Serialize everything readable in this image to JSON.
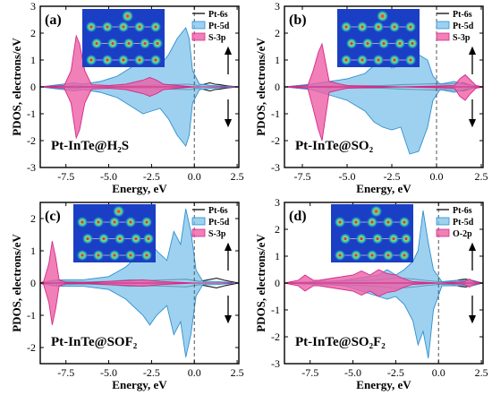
{
  "figure": {
    "background": "#ffffff"
  },
  "colors": {
    "pt6s": "#1a1a1a",
    "pt5d": "#7cc2ea",
    "pt5d_edge": "#2f8fd0",
    "s3p": "#ee5fa6",
    "s3p_edge": "#d42a86"
  },
  "chart_data": [
    {
      "type": "area",
      "panel_label": "(a)",
      "system": "Pt-InTe@H₂S",
      "xlabel": "Energy, eV",
      "ylabel": "PDOS, electrons/eV",
      "xlim": [
        -9,
        2.6
      ],
      "ylim": [
        -3,
        3
      ],
      "xticks": [
        -7.5,
        -5.0,
        -2.5,
        0.0,
        2.5
      ],
      "xticklabels": [
        "-7.5",
        "-5.0",
        "-2.5",
        "0.0",
        "2.5"
      ],
      "yticks": [
        -3,
        -2,
        -1,
        0,
        1,
        2,
        3
      ],
      "yticklabels": [
        "-3",
        "-2",
        "-1",
        "0",
        "1",
        "2",
        "3"
      ],
      "fermi_level": 0,
      "spin_arrows": true,
      "legend_position": "top-right",
      "inset": "charge-density map",
      "series": [
        {
          "name": "Pt-6s",
          "style": "line",
          "x": [
            -9,
            -7.5,
            -7.0,
            -6.5,
            -5.0,
            -3.0,
            -1.5,
            -0.3,
            0.2,
            0.6,
            0.9,
            1.2,
            1.5,
            2.0,
            2.6
          ],
          "up": [
            0,
            0.02,
            0.06,
            0.02,
            0.02,
            0.05,
            0.08,
            0.1,
            0.05,
            0.1,
            0.15,
            0.1,
            0.08,
            0.03,
            0
          ],
          "down": [
            0,
            -0.02,
            -0.06,
            -0.02,
            -0.02,
            -0.05,
            -0.08,
            -0.1,
            -0.05,
            -0.1,
            -0.15,
            -0.1,
            -0.08,
            -0.03,
            0
          ]
        },
        {
          "name": "Pt-5d",
          "style": "fill",
          "x": [
            -9,
            -7.0,
            -6.5,
            -5.5,
            -4.5,
            -3.5,
            -3.0,
            -2.5,
            -2.0,
            -1.5,
            -1.0,
            -0.5,
            -0.3,
            -0.1,
            0.3,
            1.0,
            2.6
          ],
          "up": [
            0,
            0.15,
            0.1,
            0.2,
            0.4,
            0.8,
            1.0,
            0.9,
            0.8,
            1.2,
            1.8,
            2.2,
            1.8,
            0.6,
            0.1,
            0.05,
            0
          ],
          "down": [
            0,
            -0.15,
            -0.1,
            -0.2,
            -0.4,
            -0.8,
            -1.0,
            -0.9,
            -0.8,
            -1.2,
            -1.8,
            -2.2,
            -1.8,
            -0.6,
            -0.1,
            -0.05,
            0
          ]
        },
        {
          "name": "S-3p",
          "style": "fill",
          "x": [
            -9,
            -7.6,
            -7.2,
            -6.9,
            -6.7,
            -6.4,
            -6.0,
            -5.0,
            -4.0,
            -3.0,
            -2.6,
            -2.2,
            -1.8,
            -1.0,
            0,
            2.6
          ],
          "up": [
            0,
            0.05,
            0.6,
            1.9,
            1.6,
            0.6,
            0.08,
            0.05,
            0.1,
            0.25,
            0.35,
            0.25,
            0.1,
            0.05,
            0,
            0
          ],
          "down": [
            0,
            -0.05,
            -0.6,
            -1.9,
            -1.6,
            -0.6,
            -0.08,
            -0.05,
            -0.1,
            -0.25,
            -0.35,
            -0.25,
            -0.1,
            -0.05,
            0,
            0
          ]
        }
      ]
    },
    {
      "type": "area",
      "panel_label": "(b)",
      "system": "Pt-InTe@SO₂",
      "xlabel": "Energy, eV",
      "ylabel": "PDOS, electrons/eV",
      "xlim": [
        -8.5,
        2.6
      ],
      "ylim": [
        -3,
        3
      ],
      "xticks": [
        -7.5,
        -5.0,
        -2.5,
        0.0,
        2.5
      ],
      "xticklabels": [
        "-7.5",
        "-5.0",
        "-2.5",
        "0.0",
        "2.5"
      ],
      "yticks": [
        -3,
        -2,
        -1,
        0,
        1,
        2,
        3
      ],
      "yticklabels": [
        "-3",
        "-2",
        "-1",
        "0",
        "1",
        "2",
        "3"
      ],
      "fermi_level": 0,
      "spin_arrows": true,
      "legend_position": "top-right",
      "inset": "charge-density map",
      "series": [
        {
          "name": "Pt-6s",
          "style": "line",
          "x": [
            -8.5,
            -6.5,
            -4.5,
            -3.0,
            -2.0,
            -1.0,
            -0.2,
            0.5,
            1.0,
            1.5,
            2.0,
            2.6
          ],
          "up": [
            0,
            0.02,
            0.03,
            0.05,
            0.08,
            0.1,
            0.12,
            0.1,
            0.12,
            0.15,
            0.05,
            0
          ],
          "down": [
            0,
            -0.02,
            -0.03,
            -0.05,
            -0.08,
            -0.1,
            -0.12,
            -0.1,
            -0.12,
            -0.15,
            -0.05,
            0
          ]
        },
        {
          "name": "Pt-5d",
          "style": "fill",
          "x": [
            -8.5,
            -7.0,
            -6.0,
            -5.0,
            -4.0,
            -3.5,
            -3.0,
            -2.5,
            -2.0,
            -1.5,
            -1.0,
            -0.5,
            -0.2,
            0.2,
            1.0,
            1.5,
            2.6
          ],
          "up": [
            0,
            0.1,
            0.2,
            0.3,
            0.5,
            0.8,
            1.0,
            0.7,
            0.8,
            1.5,
            1.2,
            1.0,
            0.4,
            0.1,
            0.2,
            0.1,
            0
          ],
          "down": [
            0,
            -0.1,
            -0.3,
            -0.5,
            -0.9,
            -1.3,
            -1.5,
            -1.6,
            -1.5,
            -2.5,
            -2.4,
            -1.5,
            -0.5,
            -0.1,
            -0.2,
            -0.1,
            0
          ]
        },
        {
          "name": "S-3p",
          "style": "fill",
          "x": [
            -8.5,
            -7.2,
            -6.9,
            -6.6,
            -6.4,
            -6.2,
            -6.0,
            -5.0,
            -2.0,
            1.0,
            1.3,
            1.6,
            1.9,
            2.2,
            2.6
          ],
          "up": [
            0,
            0.05,
            0.6,
            1.3,
            1.6,
            0.9,
            0.2,
            0.05,
            0,
            0.05,
            0.3,
            0.45,
            0.25,
            0.05,
            0
          ],
          "down": [
            0,
            -0.05,
            -0.8,
            -1.6,
            -2.0,
            -1.1,
            -0.2,
            -0.05,
            0,
            -0.05,
            -0.35,
            -0.5,
            -0.25,
            -0.05,
            0
          ]
        }
      ]
    },
    {
      "type": "area",
      "panel_label": "(c)",
      "system": "Pt-InTe@SOF₂",
      "xlabel": "Energy, eV",
      "ylabel": "PDOS, electrons/eV",
      "xlim": [
        -9,
        2.6
      ],
      "ylim": [
        -2.5,
        2.5
      ],
      "xticks": [
        -7.5,
        -5.0,
        -2.5,
        0.0,
        2.5
      ],
      "xticklabels": [
        "-7.5",
        "-5.0",
        "-2.5",
        "0.0",
        "2.5"
      ],
      "yticks": [
        -2,
        -1,
        0,
        1,
        2
      ],
      "yticklabels": [
        "-2",
        "-1",
        "0",
        "1",
        "2"
      ],
      "fermi_level": 0,
      "spin_arrows": true,
      "legend_position": "top-right",
      "inset": "charge-density map",
      "series": [
        {
          "name": "Pt-6s",
          "style": "line",
          "x": [
            -9,
            -8.5,
            -8.2,
            -7.8,
            -6.5,
            -5.0,
            -3.8,
            -2.5,
            -1.5,
            -0.5,
            0.3,
            0.8,
            1.3,
            1.8,
            2.6
          ],
          "up": [
            0,
            0.05,
            0.08,
            0.05,
            0.03,
            0.05,
            0.1,
            0.08,
            0.1,
            0.12,
            0.05,
            0.1,
            0.15,
            0.08,
            0
          ],
          "down": [
            0,
            -0.05,
            -0.08,
            -0.05,
            -0.03,
            -0.05,
            -0.1,
            -0.08,
            -0.1,
            -0.12,
            -0.05,
            -0.1,
            -0.15,
            -0.08,
            0
          ]
        },
        {
          "name": "Pt-5d",
          "style": "fill",
          "x": [
            -9,
            -8.0,
            -6.5,
            -5.0,
            -4.0,
            -3.0,
            -2.6,
            -2.2,
            -1.6,
            -1.2,
            -0.8,
            -0.5,
            -0.2,
            0.1,
            0.5,
            1.2,
            2.6
          ],
          "up": [
            0,
            0.1,
            0.1,
            0.2,
            0.5,
            1.0,
            1.3,
            1.0,
            0.7,
            1.6,
            1.2,
            2.3,
            1.6,
            0.4,
            0.05,
            0.05,
            0
          ],
          "down": [
            0,
            -0.1,
            -0.1,
            -0.2,
            -0.5,
            -1.0,
            -1.3,
            -1.0,
            -0.7,
            -1.6,
            -1.2,
            -2.3,
            -1.6,
            -0.4,
            -0.05,
            -0.05,
            0
          ]
        },
        {
          "name": "S-3p",
          "style": "fill",
          "x": [
            -9,
            -8.8,
            -8.5,
            -8.3,
            -8.1,
            -7.9,
            -7.5,
            -6.0,
            -5.0,
            -3.0,
            -2.0,
            0,
            2.6
          ],
          "up": [
            0,
            0.05,
            0.6,
            1.3,
            0.8,
            0.1,
            0.02,
            0.02,
            0.05,
            0.1,
            0.05,
            0,
            0
          ],
          "down": [
            0,
            -0.05,
            -0.6,
            -1.3,
            -0.8,
            -0.1,
            -0.02,
            -0.02,
            -0.05,
            -0.1,
            -0.05,
            0,
            0
          ]
        }
      ]
    },
    {
      "type": "area",
      "panel_label": "(d)",
      "system": "Pt-InTe@SO₂F₂",
      "xlabel": "Energy, eV",
      "ylabel": "PDOS, electrons/eV",
      "xlim": [
        -9,
        2.6
      ],
      "ylim": [
        -3,
        3
      ],
      "xticks": [
        -7.5,
        -5.0,
        -2.5,
        0.0,
        2.5
      ],
      "xticklabels": [
        "-7.5",
        "-5.0",
        "-2.5",
        "0.0",
        "2.5"
      ],
      "yticks": [
        -3,
        -2,
        -1,
        0,
        1,
        2,
        3
      ],
      "yticklabels": [
        "-3",
        "-2",
        "-1",
        "0",
        "1",
        "2",
        "3"
      ],
      "fermi_level": 0,
      "spin_arrows": true,
      "legend_position": "top-right",
      "inset": "charge-density map",
      "series": [
        {
          "name": "Pt-6s",
          "style": "line",
          "x": [
            -9,
            -7.0,
            -5.0,
            -4.0,
            -3.0,
            -2.5,
            -1.5,
            -0.8,
            0,
            0.8,
            1.2,
            1.6,
            2.0,
            2.6
          ],
          "up": [
            0,
            0.05,
            0.08,
            0.1,
            0.15,
            0.2,
            0.15,
            0.1,
            0.05,
            0.05,
            0.12,
            0.15,
            0.05,
            0
          ],
          "down": [
            0,
            -0.05,
            -0.08,
            -0.1,
            -0.15,
            -0.2,
            -0.15,
            -0.1,
            -0.05,
            -0.05,
            -0.12,
            -0.15,
            -0.05,
            0
          ]
        },
        {
          "name": "Pt-5d",
          "style": "fill",
          "x": [
            -9,
            -7.0,
            -5.5,
            -4.5,
            -3.5,
            -3.0,
            -2.5,
            -2.0,
            -1.5,
            -1.2,
            -0.9,
            -0.6,
            -0.3,
            0.2,
            1.0,
            2.0,
            2.6
          ],
          "up": [
            0,
            0.05,
            0.1,
            0.2,
            0.3,
            0.5,
            0.3,
            0.5,
            0.8,
            1.2,
            2.7,
            1.5,
            0.5,
            0.05,
            0.1,
            0.1,
            0
          ],
          "down": [
            0,
            -0.05,
            -0.1,
            -0.3,
            -0.5,
            -0.6,
            -0.5,
            -0.8,
            -1.4,
            -2.3,
            -1.8,
            -2.8,
            -1.0,
            -0.1,
            -0.1,
            -0.1,
            0
          ]
        },
        {
          "name": "O-2p",
          "style": "fill",
          "x": [
            -9,
            -8.2,
            -7.8,
            -7.3,
            -7.0,
            -6.0,
            -5.0,
            -4.5,
            -4.0,
            -3.5,
            -3.0,
            -2.5,
            -2.0,
            -1.5,
            0,
            1.5,
            1.8,
            2.1,
            2.6
          ],
          "up": [
            0,
            0.1,
            0.3,
            0.1,
            0.1,
            0.2,
            0.3,
            0.45,
            0.3,
            0.5,
            0.35,
            0.3,
            0.15,
            0.05,
            0,
            0.05,
            0.15,
            0.05,
            0
          ],
          "down": [
            0,
            -0.1,
            -0.3,
            -0.1,
            -0.1,
            -0.2,
            -0.3,
            -0.45,
            -0.3,
            -0.5,
            -0.35,
            -0.3,
            -0.15,
            -0.05,
            0,
            -0.05,
            -0.15,
            -0.05,
            0
          ]
        }
      ]
    }
  ]
}
